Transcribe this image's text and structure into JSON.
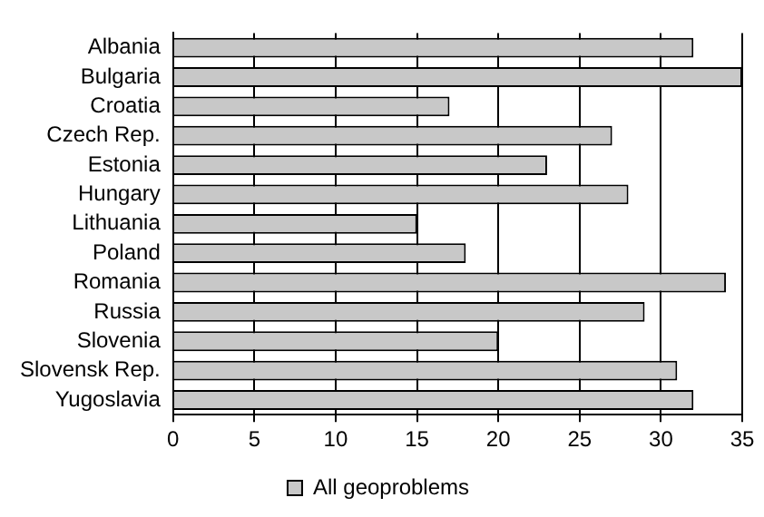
{
  "chart_data": {
    "type": "bar",
    "orientation": "horizontal",
    "categories": [
      "Albania",
      "Bulgaria",
      "Croatia",
      "Czech Rep.",
      "Estonia",
      "Hungary",
      "Lithuania",
      "Poland",
      "Romania",
      "Russia",
      "Slovenia",
      "Slovensk Rep.",
      "Yugoslavia"
    ],
    "series": [
      {
        "name": "All geoproblems",
        "color": "#c8c8c8",
        "values": [
          32,
          35,
          17,
          27,
          23,
          28,
          15,
          18,
          34,
          29,
          20,
          31,
          32
        ]
      }
    ],
    "xlim": [
      0,
      35
    ],
    "xticks": [
      0,
      5,
      10,
      15,
      20,
      25,
      30,
      35
    ],
    "grid": "x",
    "legend": "bottom"
  }
}
